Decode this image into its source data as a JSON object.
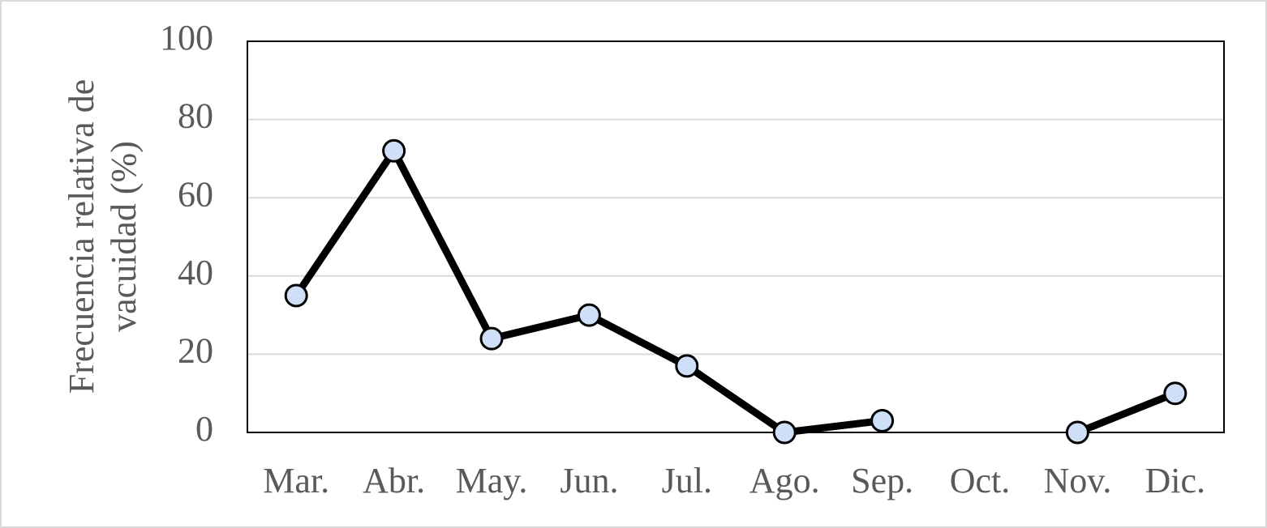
{
  "chart_data": {
    "type": "line",
    "ylabel": [
      "Frecuencia relativa de",
      "vacuidad (%)"
    ],
    "categories": [
      "Mar.",
      "Abr.",
      "May.",
      "Jun.",
      "Jul.",
      "Ago.",
      "Sep.",
      "Oct.",
      "Nov.",
      "Dic."
    ],
    "series": [
      {
        "name": "Frecuencia relativa de vacuidad",
        "color": "#000000",
        "marker_color": "#cfdff7",
        "values": [
          35,
          72,
          24,
          30,
          17,
          0,
          3,
          null,
          0,
          10
        ]
      }
    ],
    "ylim": [
      0,
      100
    ],
    "yticks": [
      0,
      20,
      40,
      60,
      80,
      100
    ],
    "grid": true
  }
}
